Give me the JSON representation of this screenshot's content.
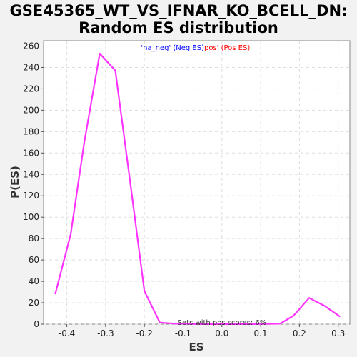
{
  "chart_data": {
    "type": "line",
    "title_line1": "GSE45365_WT_VS_IFNAR_KO_BCELL_DN:",
    "title_line2": "Random ES distribution",
    "xlabel": "ES",
    "ylabel": "P(ES)",
    "xlim": [
      -0.46,
      0.33
    ],
    "ylim": [
      0,
      265
    ],
    "xticks": [
      -0.4,
      -0.3,
      -0.2,
      -0.1,
      0.0,
      0.1,
      0.2,
      0.3
    ],
    "xtick_labels": [
      "-0.4",
      "-0.3",
      "-0.2",
      "-0.1",
      "0.0",
      "0.1",
      "0.2",
      "0.3"
    ],
    "yticks": [
      0,
      20,
      40,
      60,
      80,
      100,
      120,
      140,
      160,
      180,
      200,
      220,
      240,
      260
    ],
    "ytick_labels": [
      "0",
      "20",
      "40",
      "60",
      "80",
      "100",
      "120",
      "140",
      "160",
      "180",
      "200",
      "220",
      "240",
      "260"
    ],
    "grid": true,
    "legend": {
      "placement": "top-center",
      "neg_label": "'na_neg' (Neg ES)",
      "pos_label": "pos' (Pos ES)",
      "neg_color": "#0000ff",
      "pos_color": "#ff0000"
    },
    "annotation": "Sets with pos scores: 6%",
    "series": [
      {
        "color": "#ff33ff",
        "x": [
          -0.43,
          -0.39,
          -0.355,
          -0.315,
          -0.275,
          -0.24,
          -0.2,
          -0.16,
          -0.12,
          -0.08,
          -0.04,
          0.0,
          0.035,
          0.075,
          0.11,
          0.15,
          0.185,
          0.225,
          0.265,
          0.305
        ],
        "y": [
          28,
          84,
          170,
          253,
          237,
          142,
          31,
          1.5,
          0.5,
          0.2,
          0.1,
          0.1,
          0.1,
          0.1,
          0.2,
          0.5,
          8,
          24.5,
          17,
          7
        ]
      }
    ]
  }
}
